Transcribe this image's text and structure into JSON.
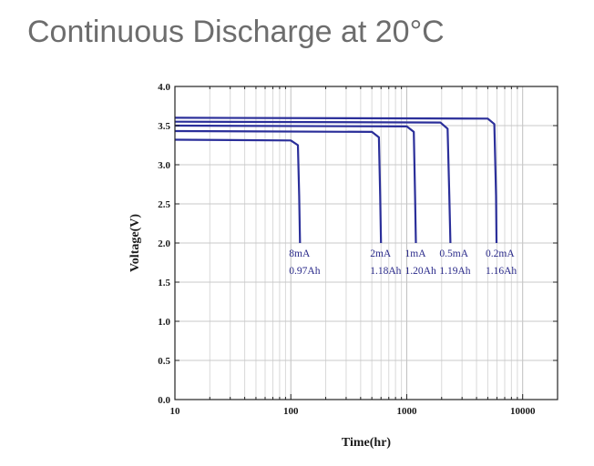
{
  "page_title": "Continuous Discharge at 20°C",
  "chart_data": {
    "type": "line",
    "title": "",
    "xlabel": "Time(hr)",
    "ylabel": "Voltage(V)",
    "x_scale": "log",
    "xlim": [
      10,
      20000
    ],
    "ylim": [
      0.0,
      4.0
    ],
    "x_ticks": [
      "10",
      "100",
      "1000",
      "10000"
    ],
    "y_ticks": [
      "0.0",
      "0.5",
      "1.0",
      "1.5",
      "2.0",
      "2.5",
      "3.0",
      "3.5",
      "4.0"
    ],
    "grid": true,
    "line_color": "#2b2f9a",
    "series": [
      {
        "name": "8mA",
        "capacity": "0.97Ah",
        "x": [
          10,
          100,
          115,
          118,
          120
        ],
        "y": [
          3.32,
          3.31,
          3.25,
          2.6,
          2.0
        ]
      },
      {
        "name": "2mA",
        "capacity": "1.18Ah",
        "x": [
          10,
          500,
          575,
          590,
          600
        ],
        "y": [
          3.43,
          3.42,
          3.35,
          2.6,
          2.0
        ]
      },
      {
        "name": "1mA",
        "capacity": "1.20Ah",
        "x": [
          10,
          1000,
          1150,
          1180,
          1200
        ],
        "y": [
          3.5,
          3.49,
          3.42,
          2.6,
          2.0
        ]
      },
      {
        "name": "0.5mA",
        "capacity": "1.19Ah",
        "x": [
          10,
          1950,
          2250,
          2330,
          2380
        ],
        "y": [
          3.55,
          3.54,
          3.46,
          2.6,
          2.0
        ]
      },
      {
        "name": "0.2mA",
        "capacity": "1.16Ah",
        "x": [
          10,
          5000,
          5700,
          5900,
          5950
        ],
        "y": [
          3.6,
          3.59,
          3.52,
          2.6,
          2.0
        ]
      }
    ]
  }
}
